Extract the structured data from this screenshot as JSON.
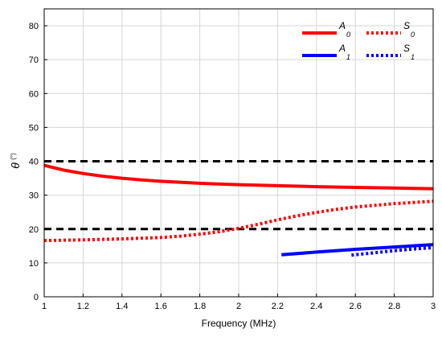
{
  "chart_data": {
    "type": "line",
    "xlabel": "Frequency (MHz)",
    "ylabel_symbol": "θ",
    "ylabel_unit": "(°)",
    "xlim": [
      1,
      3
    ],
    "ylim": [
      0,
      85
    ],
    "xticks": [
      1,
      1.2,
      1.4,
      1.6,
      1.8,
      2,
      2.2,
      2.4,
      2.6,
      2.8,
      3
    ],
    "yticks": [
      0,
      10,
      20,
      30,
      40,
      50,
      60,
      70,
      80
    ],
    "grid": true,
    "legend_position": "top-right",
    "reference_lines": [
      {
        "y": 40,
        "style": "dashed",
        "color": "#000000"
      },
      {
        "y": 20,
        "style": "dashed",
        "color": "#000000"
      }
    ],
    "series": [
      {
        "name": "A",
        "subscript": "0",
        "color": "#ff0000",
        "style": "solid",
        "x": [
          1,
          1.1,
          1.2,
          1.3,
          1.4,
          1.5,
          1.6,
          1.8,
          2,
          2.2,
          2.4,
          2.6,
          2.8,
          3
        ],
        "y": [
          38.8,
          37.4,
          36.4,
          35.6,
          35,
          34.5,
          34.1,
          33.5,
          33.1,
          32.8,
          32.5,
          32.3,
          32.1,
          31.9
        ]
      },
      {
        "name": "S",
        "subscript": "0",
        "color": "#ff0000",
        "style": "dotted",
        "x": [
          1,
          1.2,
          1.4,
          1.6,
          1.7,
          1.8,
          1.9,
          2,
          2.1,
          2.2,
          2.3,
          2.4,
          2.5,
          2.6,
          2.8,
          3
        ],
        "y": [
          16.6,
          16.8,
          17.1,
          17.5,
          17.9,
          18.5,
          19.2,
          20.2,
          21.4,
          22.7,
          23.9,
          24.9,
          25.8,
          26.5,
          27.5,
          28.2
        ]
      },
      {
        "name": "A",
        "subscript": "1",
        "color": "#0000ff",
        "style": "solid",
        "x": [
          2.22,
          2.4,
          2.6,
          2.8,
          3
        ],
        "y": [
          12.4,
          13.2,
          14,
          14.7,
          15.4
        ]
      },
      {
        "name": "S",
        "subscript": "1",
        "color": "#0000ff",
        "style": "dotted",
        "x": [
          2.58,
          2.7,
          2.8,
          2.9,
          3
        ],
        "y": [
          12.3,
          13,
          13.6,
          14.1,
          14.5
        ]
      }
    ]
  }
}
